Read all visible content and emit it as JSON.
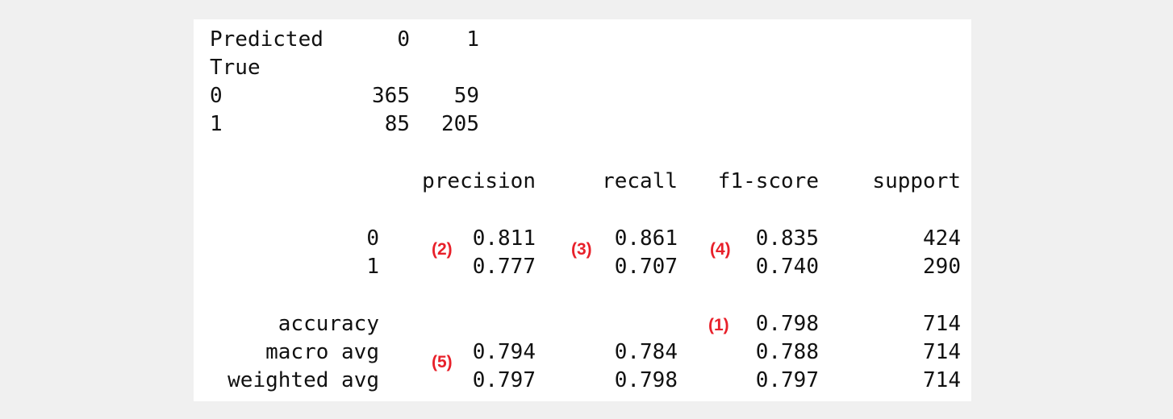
{
  "confusion_matrix": {
    "header_label": "Predicted",
    "col_labels": [
      "0",
      "1"
    ],
    "index_label": "True",
    "rows": [
      {
        "label": "0",
        "values": [
          "365",
          "59"
        ]
      },
      {
        "label": "1",
        "values": [
          "85",
          "205"
        ]
      }
    ]
  },
  "classification_report": {
    "headers": [
      "precision",
      "recall",
      "f1-score",
      "support"
    ],
    "class_rows": [
      {
        "label": "0",
        "precision": "0.811",
        "recall": "0.861",
        "f1": "0.835",
        "support": "424"
      },
      {
        "label": "1",
        "precision": "0.777",
        "recall": "0.707",
        "f1": "0.740",
        "support": "290"
      }
    ],
    "accuracy_row": {
      "label": "accuracy",
      "f1": "0.798",
      "support": "714"
    },
    "avg_rows": [
      {
        "label": "macro avg",
        "precision": "0.794",
        "recall": "0.784",
        "f1": "0.788",
        "support": "714"
      },
      {
        "label": "weighted avg",
        "precision": "0.797",
        "recall": "0.798",
        "f1": "0.797",
        "support": "714"
      }
    ]
  },
  "markers": {
    "accuracy": "(1)",
    "precision": "(2)",
    "recall": "(3)",
    "f1": "(4)",
    "macro": "(5)",
    "color": "#e8202a"
  }
}
